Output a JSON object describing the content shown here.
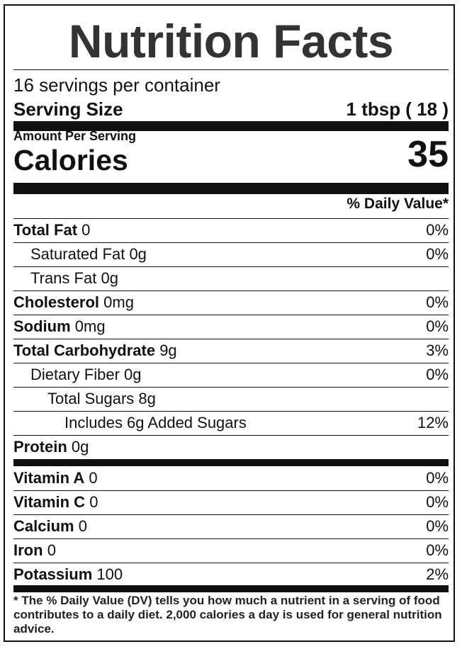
{
  "title": "Nutrition Facts",
  "servings_per_container": "16 servings per container",
  "serving_size": {
    "label": "Serving Size",
    "value": "1 tbsp ( 18 )"
  },
  "amount_per_serving": "Amount Per Serving",
  "calories": {
    "label": "Calories",
    "value": "35"
  },
  "daily_value_header": "% Daily Value*",
  "nutrients": [
    {
      "name": "Total Fat",
      "amount": "0",
      "dv": "0%",
      "bold": true,
      "indent": 0
    },
    {
      "name": "Saturated Fat",
      "amount": "0g",
      "dv": "0%",
      "bold": false,
      "indent": 1
    },
    {
      "name": "Trans Fat",
      "amount": "0g",
      "dv": "",
      "bold": false,
      "indent": 1
    },
    {
      "name": "Cholesterol",
      "amount": "0mg",
      "dv": "0%",
      "bold": true,
      "indent": 0
    },
    {
      "name": "Sodium",
      "amount": "0mg",
      "dv": "0%",
      "bold": true,
      "indent": 0
    },
    {
      "name": "Total Carbohydrate",
      "amount": "9g",
      "dv": "3%",
      "bold": true,
      "indent": 0
    },
    {
      "name": "Dietary Fiber",
      "amount": "0g",
      "dv": "0%",
      "bold": false,
      "indent": 1
    },
    {
      "name": "Total Sugars",
      "amount": "8g",
      "dv": "",
      "bold": false,
      "indent": 2
    },
    {
      "name": "Includes 6g Added Sugars",
      "amount": "",
      "dv": "12%",
      "bold": false,
      "indent": 3
    },
    {
      "name": "Protein",
      "amount": "0g",
      "dv": "",
      "bold": true,
      "indent": 0
    }
  ],
  "vitamins": [
    {
      "name": "Vitamin A",
      "amount": "0",
      "dv": "0%"
    },
    {
      "name": "Vitamin C",
      "amount": "0",
      "dv": "0%"
    },
    {
      "name": "Calcium",
      "amount": "0",
      "dv": "0%"
    },
    {
      "name": "Iron",
      "amount": "0",
      "dv": "0%"
    },
    {
      "name": "Potassium",
      "amount": "100",
      "dv": "2%"
    }
  ],
  "footnote": "* The % Daily Value (DV) tells you how much a nutrient in a serving of food contributes to a daily diet. 2,000 calories a day is used for general nutrition advice."
}
